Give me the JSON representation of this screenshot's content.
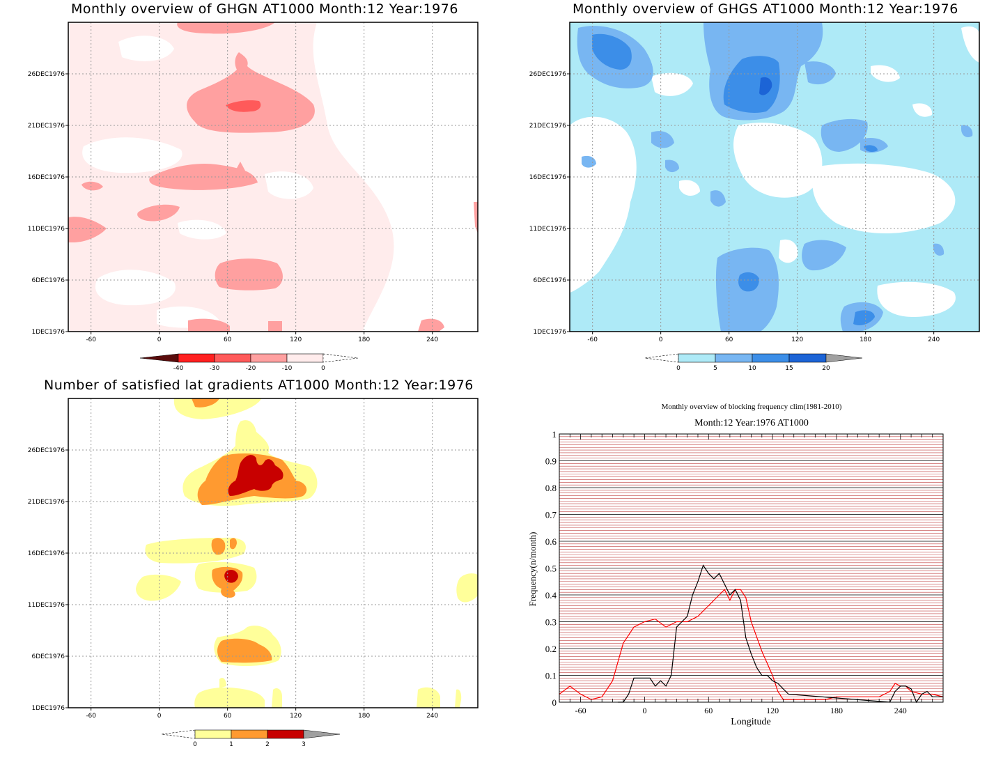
{
  "panels": {
    "ghgn": {
      "title": "Monthly overview of GHGN AT1000 Month:12 Year:1976",
      "x_ticks": [
        "-60",
        "0",
        "60",
        "120",
        "180",
        "240"
      ],
      "y_ticks": [
        "1DEC1976",
        "6DEC1976",
        "11DEC1976",
        "16DEC1976",
        "21DEC1976",
        "26DEC1976"
      ],
      "colorbar": {
        "labels": [
          "-40",
          "-30",
          "-20",
          "-10",
          "0"
        ],
        "colors": [
          "#5a0c0c",
          "#ff2020",
          "#ff5a5a",
          "#ffa0a0",
          "#ffecec"
        ]
      }
    },
    "ghgs": {
      "title": "Monthly overview of GHGS AT1000 Month:12 Year:1976",
      "x_ticks": [
        "-60",
        "0",
        "60",
        "120",
        "180",
        "240"
      ],
      "y_ticks": [
        "1DEC1976",
        "6DEC1976",
        "11DEC1976",
        "16DEC1976",
        "21DEC1976",
        "26DEC1976"
      ],
      "colorbar": {
        "labels": [
          "0",
          "5",
          "10",
          "15",
          "20"
        ],
        "colors": [
          "#aeeaf7",
          "#78b6f2",
          "#3c8ee8",
          "#1c64d6",
          "#a0a0a0"
        ]
      }
    },
    "lat": {
      "title": "Number of satisfied lat gradients AT1000 Month:12 Year:1976",
      "x_ticks": [
        "-60",
        "0",
        "60",
        "120",
        "180",
        "240"
      ],
      "y_ticks": [
        "1DEC1976",
        "6DEC1976",
        "11DEC1976",
        "16DEC1976",
        "21DEC1976",
        "26DEC1976"
      ],
      "colorbar": {
        "labels": [
          "0",
          "1",
          "2",
          "3"
        ],
        "colors": [
          "#ffff9a",
          "#ff9a30",
          "#c80000",
          "#a0a0a0"
        ]
      }
    },
    "freq": {
      "title": "Monthly overview of blocking frequency clim(1981-2010)",
      "subtitle": "Month:12 Year:1976  AT1000",
      "xlabel": "Longitude",
      "ylabel": "Frequency(n/month)",
      "x_ticks": [
        "-60",
        "0",
        "60",
        "120",
        "180",
        "240"
      ],
      "y_ticks": [
        "0",
        "0.1",
        "0.2",
        "0.3",
        "0.4",
        "0.5",
        "0.6",
        "0.7",
        "0.8",
        "0.9",
        "1"
      ]
    }
  },
  "chart_data": [
    {
      "type": "heatmap",
      "title": "Monthly overview of GHGN AT1000 Month:12 Year:1976",
      "x_range": [
        -80,
        280
      ],
      "y_range": [
        "1DEC1976",
        "31DEC1976"
      ],
      "levels": [
        -40,
        -30,
        -20,
        -10,
        0
      ],
      "grid": true
    },
    {
      "type": "heatmap",
      "title": "Monthly overview of GHGS AT1000 Month:12 Year:1976",
      "x_range": [
        -80,
        280
      ],
      "y_range": [
        "1DEC1976",
        "31DEC1976"
      ],
      "levels": [
        0,
        5,
        10,
        15,
        20
      ],
      "grid": true
    },
    {
      "type": "heatmap",
      "title": "Number of satisfied lat gradients AT1000 Month:12 Year:1976",
      "x_range": [
        -80,
        280
      ],
      "y_range": [
        "1DEC1976",
        "31DEC1976"
      ],
      "levels": [
        0,
        1,
        2,
        3
      ],
      "grid": true
    },
    {
      "type": "line",
      "title": "Monthly overview of blocking frequency clim(1981-2010)",
      "subtitle": "Month:12 Year:1976  AT1000",
      "xlabel": "Longitude",
      "ylabel": "Frequency(n/month)",
      "xlim": [
        -80,
        280
      ],
      "ylim": [
        0,
        1
      ],
      "series": [
        {
          "color": "#ff0000",
          "x": [
            -80,
            -70,
            -60,
            -50,
            -40,
            -30,
            -20,
            -10,
            0,
            10,
            20,
            25,
            30,
            40,
            50,
            60,
            70,
            75,
            80,
            85,
            90,
            95,
            100,
            110,
            120,
            125,
            130,
            140,
            150,
            160,
            170,
            180,
            190,
            200,
            210,
            220,
            230,
            235,
            240,
            245,
            250,
            260,
            270,
            280
          ],
          "y": [
            0.03,
            0.06,
            0.03,
            0.01,
            0.02,
            0.08,
            0.22,
            0.28,
            0.3,
            0.31,
            0.28,
            0.29,
            0.3,
            0.3,
            0.32,
            0.36,
            0.4,
            0.42,
            0.38,
            0.42,
            0.42,
            0.39,
            0.3,
            0.19,
            0.1,
            0.04,
            0.01,
            0.01,
            0.01,
            0.01,
            0.01,
            0.02,
            0.02,
            0.02,
            0.02,
            0.02,
            0.04,
            0.07,
            0.06,
            0.06,
            0.04,
            0.03,
            0.03,
            0.02
          ]
        },
        {
          "color": "#000000",
          "x": [
            -25,
            -20,
            -15,
            -10,
            0,
            5,
            10,
            15,
            20,
            25,
            30,
            35,
            40,
            45,
            50,
            55,
            60,
            65,
            70,
            75,
            80,
            85,
            90,
            95,
            100,
            105,
            110,
            115,
            120,
            125,
            130,
            135,
            230,
            235,
            240,
            245,
            250,
            255,
            260,
            265,
            270,
            280
          ],
          "y": [
            0.0,
            0.0,
            0.03,
            0.09,
            0.09,
            0.09,
            0.06,
            0.08,
            0.06,
            0.1,
            0.28,
            0.3,
            0.32,
            0.4,
            0.45,
            0.51,
            0.48,
            0.46,
            0.48,
            0.44,
            0.4,
            0.42,
            0.38,
            0.24,
            0.18,
            0.13,
            0.1,
            0.1,
            0.08,
            0.07,
            0.05,
            0.03,
            0.0,
            0.04,
            0.06,
            0.06,
            0.05,
            0.0,
            0.03,
            0.04,
            0.02,
            0.02
          ]
        }
      ]
    }
  ]
}
